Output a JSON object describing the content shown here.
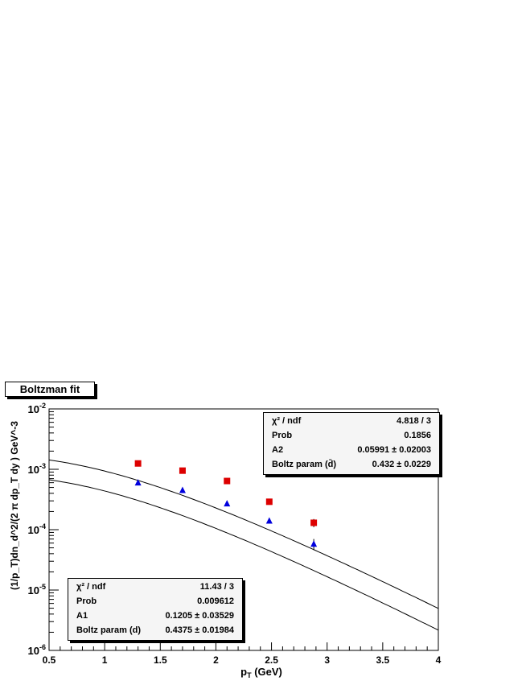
{
  "title": "Boltzman fit",
  "colors": {
    "red_series": "#dd0000",
    "blue_series": "#0000dd",
    "axis": "#000000",
    "stat_bg": "#f5f5f5"
  },
  "chart_data": {
    "type": "scatter",
    "xlabel": "p_T (GeV)",
    "ylabel": "(1/p_T)dn_d^2/(2 π dp_T dy ) GeV^-3",
    "xlim": [
      0.5,
      4
    ],
    "ylim": [
      1e-06,
      0.01
    ],
    "yscale": "log",
    "x_ticks": [
      "0.5",
      "1",
      "1.5",
      "2",
      "2.5",
      "3",
      "3.5",
      "4"
    ],
    "y_ticks": [
      {
        "base": "10",
        "exp": "-6"
      },
      {
        "base": "10",
        "exp": "-5"
      },
      {
        "base": "10",
        "exp": "-4"
      },
      {
        "base": "10",
        "exp": "-3"
      },
      {
        "base": "10",
        "exp": "-2"
      }
    ],
    "series": [
      {
        "marker": "square",
        "color": "#dd0000",
        "x": [
          1.3,
          1.7,
          2.1,
          2.48,
          2.88
        ],
        "y": [
          0.00125,
          0.00095,
          0.00064,
          0.00029,
          0.00013
        ],
        "err": [
          5e-05,
          4e-05,
          3e-05,
          1.5e-05,
          2e-05
        ],
        "fit": {
          "A": 0.05991,
          "T": 0.432
        }
      },
      {
        "marker": "triangle",
        "color": "#0000dd",
        "x": [
          1.3,
          1.7,
          2.1,
          2.48,
          2.88
        ],
        "y": [
          0.0006,
          0.00045,
          0.00027,
          0.00014,
          5.8e-05
        ],
        "err": [
          2e-05,
          2e-05,
          1e-05,
          8e-06,
          1.2e-05
        ],
        "fit": {
          "A": 0.1205,
          "T": 0.4375
        }
      }
    ]
  },
  "stats_top": [
    {
      "key": "χ² / ndf",
      "value": "4.818 / 3"
    },
    {
      "key": "Prob",
      "value": "0.1856"
    },
    {
      "key": "A2",
      "value": "0.05991 ± 0.02003"
    },
    {
      "key": "Boltz param (d̄)",
      "value": "0.432 ± 0.0229"
    }
  ],
  "stats_bottom": [
    {
      "key": "χ² / ndf",
      "value": "11.43 / 3"
    },
    {
      "key": "Prob",
      "value": "0.009612"
    },
    {
      "key": "A1",
      "value": "0.1205 ± 0.03529"
    },
    {
      "key": "Boltz param (d)",
      "value": "0.4375 ± 0.01984"
    }
  ]
}
